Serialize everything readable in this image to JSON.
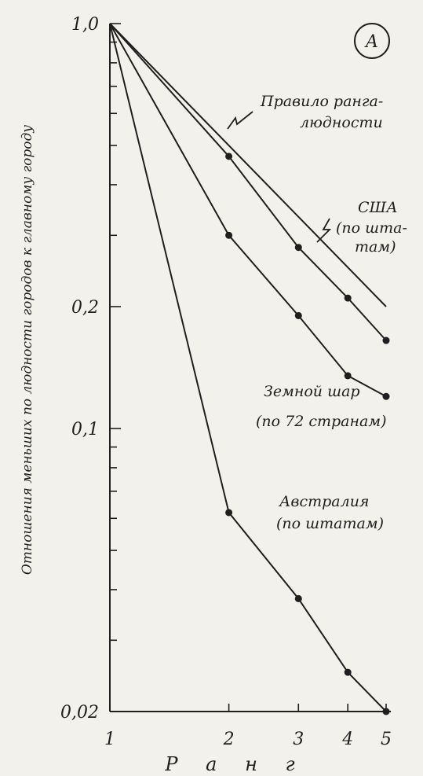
{
  "chart_data": {
    "type": "line",
    "panel_label": "А",
    "xlabel": "Р а н г",
    "ylabel": "Отношения меньших по людности городов к главному городу",
    "x_scale": "log",
    "y_scale": "log",
    "xlim": [
      1,
      5
    ],
    "ylim": [
      0.02,
      1.0
    ],
    "x_ticks": [
      1,
      2,
      3,
      4,
      5
    ],
    "x_tick_labels": [
      "1",
      "2",
      "3",
      "4",
      "5"
    ],
    "y_ticks": [
      0.02,
      0.1,
      0.2,
      1.0
    ],
    "y_tick_labels": [
      "0,02",
      "0,1",
      "0,2",
      "1,0"
    ],
    "y_minor_ticks": [
      0.03,
      0.04,
      0.05,
      0.06,
      0.07,
      0.08,
      0.09,
      0.3,
      0.4,
      0.5,
      0.6,
      0.7,
      0.8,
      0.9
    ],
    "series": [
      {
        "name": "Правило ранга-людности",
        "label_lines": [
          "Правило ранга-",
          "людности"
        ],
        "x": [
          1,
          5
        ],
        "y": [
          1.0,
          0.2
        ],
        "markers": false
      },
      {
        "name": "США (по штатам)",
        "label_lines": [
          "США",
          "(по шта-",
          "там)"
        ],
        "x": [
          1,
          2,
          3,
          4,
          5
        ],
        "y": [
          1.0,
          0.47,
          0.28,
          0.21,
          0.165
        ],
        "markers": true
      },
      {
        "name": "Земной шар (по 72 странам)",
        "label_lines": [
          "Земной шар",
          "(по 72 странам)"
        ],
        "x": [
          1,
          2,
          3,
          4,
          5
        ],
        "y": [
          1.0,
          0.3,
          0.19,
          0.135,
          0.12
        ],
        "markers": true
      },
      {
        "name": "Австралия (по штатам)",
        "label_lines": [
          "Австралия",
          "(по штатам)"
        ],
        "x": [
          1,
          2,
          3,
          4,
          5
        ],
        "y": [
          1.0,
          0.062,
          0.038,
          0.025,
          0.02
        ],
        "markers": true
      }
    ]
  }
}
